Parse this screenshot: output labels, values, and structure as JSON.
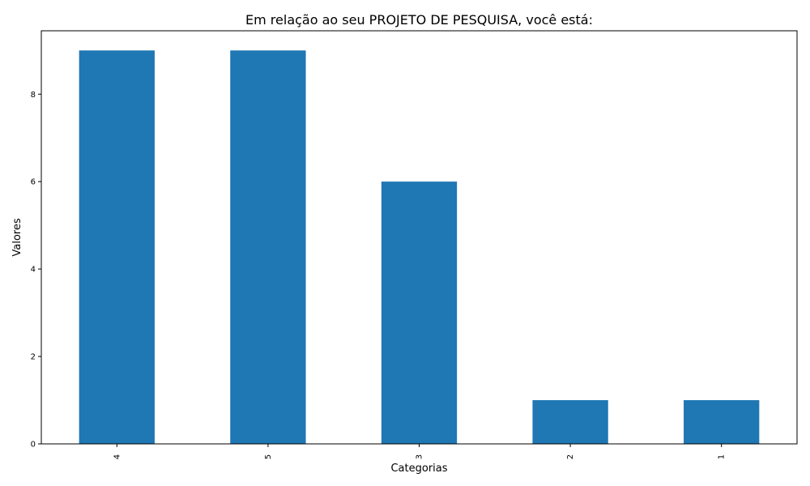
{
  "chart_data": {
    "type": "bar",
    "title": "Em relação ao seu PROJETO DE PESQUISA, você está:",
    "xlabel": "Categorias",
    "ylabel": "Valores",
    "categories": [
      "4",
      "5",
      "3",
      "2",
      "1"
    ],
    "values": [
      9,
      9,
      6,
      1,
      1
    ],
    "yticks": [
      0,
      2,
      4,
      6,
      8
    ],
    "ylim": [
      0,
      9.45
    ],
    "grid": false,
    "bar_color": "#1f77b4",
    "axis_color": "#000000"
  }
}
